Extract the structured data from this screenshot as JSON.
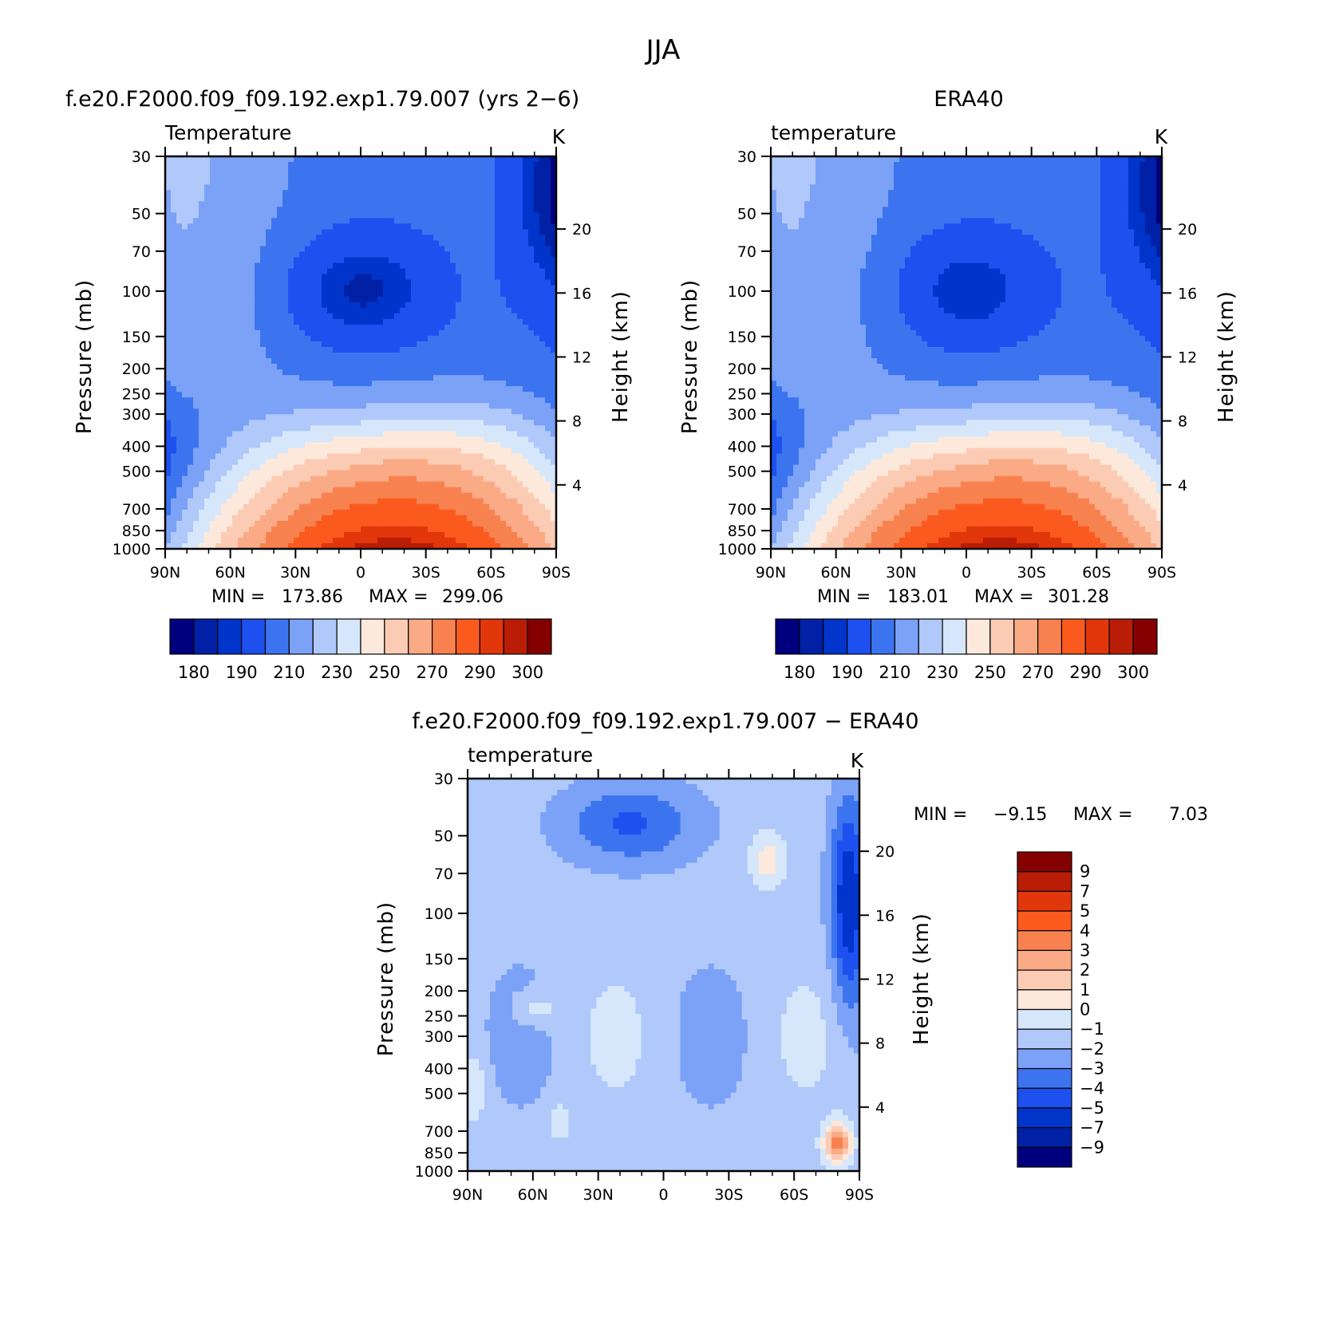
{
  "figure": {
    "title": "JJA",
    "palettes": {
      "abs": [
        "#00007f",
        "#0021a5",
        "#0035cc",
        "#1e50f0",
        "#3c74f0",
        "#7ba2f6",
        "#b0c8fa",
        "#d6e7fb",
        "#fde9dc",
        "#fccbb4",
        "#fbaa86",
        "#f8824f",
        "#fb5a1f",
        "#e2360b",
        "#ba1d06",
        "#850000"
      ],
      "diff": [
        "#00007f",
        "#0021a5",
        "#0035cc",
        "#1e50f0",
        "#3c74f0",
        "#7ba2f6",
        "#b0c8fa",
        "#d6e7fb",
        "#fde9dc",
        "#fccbb4",
        "#fbaa86",
        "#f8824f",
        "#fb5a1f",
        "#e2360b",
        "#ba1d06",
        "#850000"
      ]
    }
  },
  "chart_data": [
    {
      "type": "heatmap",
      "title": "f.e20.F2000.f09_f09.192.exp1.79.007 (yrs 2−6)",
      "left_title": "Temperature",
      "units": "K",
      "xlabel": "",
      "ylabel": "Pressure (mb)",
      "ylabel2": "Height (km)",
      "x_ticks": [
        "90N",
        "60N",
        "30N",
        "0",
        "30S",
        "60S",
        "90S"
      ],
      "x_tick_values": [
        90,
        60,
        30,
        0,
        -30,
        -60,
        -90
      ],
      "xlim": [
        90,
        -90
      ],
      "y_ticks": [
        30,
        50,
        70,
        100,
        150,
        200,
        250,
        300,
        400,
        500,
        700,
        850,
        1000
      ],
      "ylim": [
        30,
        1000
      ],
      "y_scale": "log",
      "y2_ticks": [
        4,
        8,
        12,
        16,
        20
      ],
      "min_label": "MIN =",
      "min": "173.86",
      "max_label": "MAX =",
      "max": "299.06",
      "colorbar": {
        "orientation": "horizontal",
        "labels": [
          "180",
          "190",
          "210",
          "230",
          "250",
          "270",
          "290",
          "300"
        ]
      }
    },
    {
      "type": "heatmap",
      "title": "ERA40",
      "left_title": "temperature",
      "units": "K",
      "xlabel": "",
      "ylabel": "Pressure (mb)",
      "ylabel2": "Height (km)",
      "x_ticks": [
        "90N",
        "60N",
        "30N",
        "0",
        "30S",
        "60S",
        "90S"
      ],
      "x_tick_values": [
        90,
        60,
        30,
        0,
        -30,
        -60,
        -90
      ],
      "xlim": [
        90,
        -90
      ],
      "y_ticks": [
        30,
        50,
        70,
        100,
        150,
        200,
        250,
        300,
        400,
        500,
        700,
        850,
        1000
      ],
      "ylim": [
        30,
        1000
      ],
      "y_scale": "log",
      "y2_ticks": [
        4,
        8,
        12,
        16,
        20
      ],
      "min_label": "MIN =",
      "min": "183.01",
      "max_label": "MAX =",
      "max": "301.28",
      "colorbar": {
        "orientation": "horizontal",
        "labels": [
          "180",
          "190",
          "210",
          "230",
          "250",
          "270",
          "290",
          "300"
        ]
      }
    },
    {
      "type": "heatmap",
      "title": "f.e20.F2000.f09_f09.192.exp1.79.007 − ERA40",
      "left_title": "temperature",
      "units": "K",
      "xlabel": "",
      "ylabel": "Pressure (mb)",
      "ylabel2": "Height (km)",
      "x_ticks": [
        "90N",
        "60N",
        "30N",
        "0",
        "30S",
        "60S",
        "90S"
      ],
      "x_tick_values": [
        90,
        60,
        30,
        0,
        -30,
        -60,
        -90
      ],
      "xlim": [
        90,
        -90
      ],
      "y_ticks": [
        30,
        50,
        70,
        100,
        150,
        200,
        250,
        300,
        400,
        500,
        700,
        850,
        1000
      ],
      "ylim": [
        30,
        1000
      ],
      "y_scale": "log",
      "y2_ticks": [
        4,
        8,
        12,
        16,
        20
      ],
      "min_label": "MIN =",
      "min": "−9.15",
      "max_label": "MAX =",
      "max": "7.03",
      "colorbar": {
        "orientation": "vertical",
        "labels": [
          "9",
          "7",
          "5",
          "4",
          "3",
          "2",
          "1",
          "0",
          "−1",
          "−2",
          "−3",
          "−4",
          "−5",
          "−7",
          "−9"
        ]
      }
    }
  ]
}
